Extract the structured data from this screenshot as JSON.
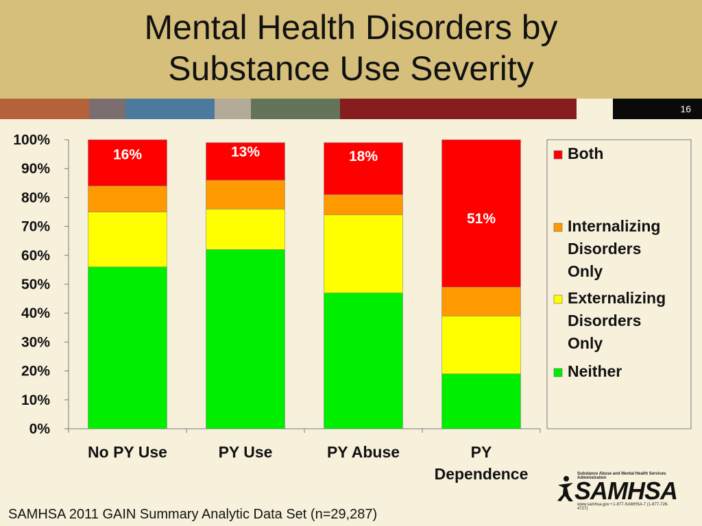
{
  "slide": {
    "title_line1": "Mental Health Disorders by",
    "title_line2": "Substance Use Severity",
    "slide_number": "16",
    "footnote": "SAMHSA 2011 GAIN Summary Analytic Data Set (n=29,287)",
    "logo": {
      "wordmark": "SAMHSA",
      "tagline": "Substance Abuse and Mental Health Services Administration",
      "contact": "www.samhsa.gov • 1-877-SAMHSA-7 (1-877-726-4727)"
    },
    "colors": {
      "header": "#d6bf7b",
      "background": "#f7f1dc",
      "stripe": [
        "#b5623a",
        "#7b6e70",
        "#4c7a9e",
        "#b3ab97",
        "#64745a",
        "#851c1e",
        "#f7f1dc",
        "#0a0a0a"
      ]
    }
  },
  "chart_data": {
    "type": "bar",
    "stacked": true,
    "categories": [
      "No PY Use",
      "PY Use",
      "PY Abuse",
      "PY Dependence"
    ],
    "y_tick_labels": [
      "0%",
      "10%",
      "20%",
      "30%",
      "40%",
      "50%",
      "60%",
      "70%",
      "80%",
      "90%",
      "100%"
    ],
    "ylim": [
      0,
      100
    ],
    "series": [
      {
        "name": "Neither",
        "color": "#00ee00",
        "values": [
          56,
          62,
          47,
          19
        ]
      },
      {
        "name": "Externalizing Disorders Only",
        "color": "#ffff00",
        "values": [
          19,
          14,
          27,
          20
        ]
      },
      {
        "name": "Internalizing Disorders Only",
        "color": "#ff9900",
        "values": [
          9,
          10,
          7,
          10
        ]
      },
      {
        "name": "Both",
        "color": "#ff0000",
        "values": [
          16,
          13,
          18,
          51
        ]
      }
    ],
    "data_labels": [
      "16%",
      "13%",
      "18%",
      "51%"
    ],
    "legend": {
      "position": "right",
      "entries": [
        {
          "lines": [
            "Both"
          ],
          "color": "#ff0000"
        },
        {
          "lines": [
            "Internalizing",
            "Disorders",
            "Only"
          ],
          "color": "#ff9900"
        },
        {
          "lines": [
            "Externalizing",
            "Disorders",
            "Only"
          ],
          "color": "#ffff00"
        },
        {
          "lines": [
            "Neither"
          ],
          "color": "#00ee00"
        }
      ]
    }
  }
}
